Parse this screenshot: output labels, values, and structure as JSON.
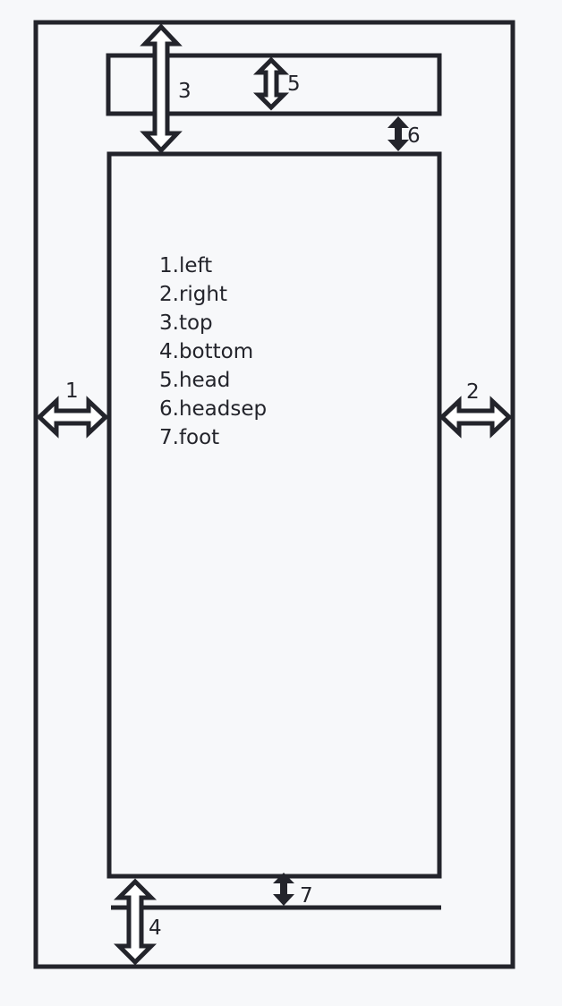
{
  "legend": {
    "items": [
      "1.left",
      "2.right",
      "3.top",
      "4.bottom",
      "5.head",
      "6.headsep",
      "7.foot"
    ]
  },
  "markers": {
    "left": "1",
    "right": "2",
    "top": "3",
    "bottom": "4",
    "head": "5",
    "headsep": "6",
    "foot": "7"
  },
  "colors": {
    "stroke": "#23242b",
    "background": "#f7f8fa",
    "arrow_fill": "#ffffff"
  }
}
